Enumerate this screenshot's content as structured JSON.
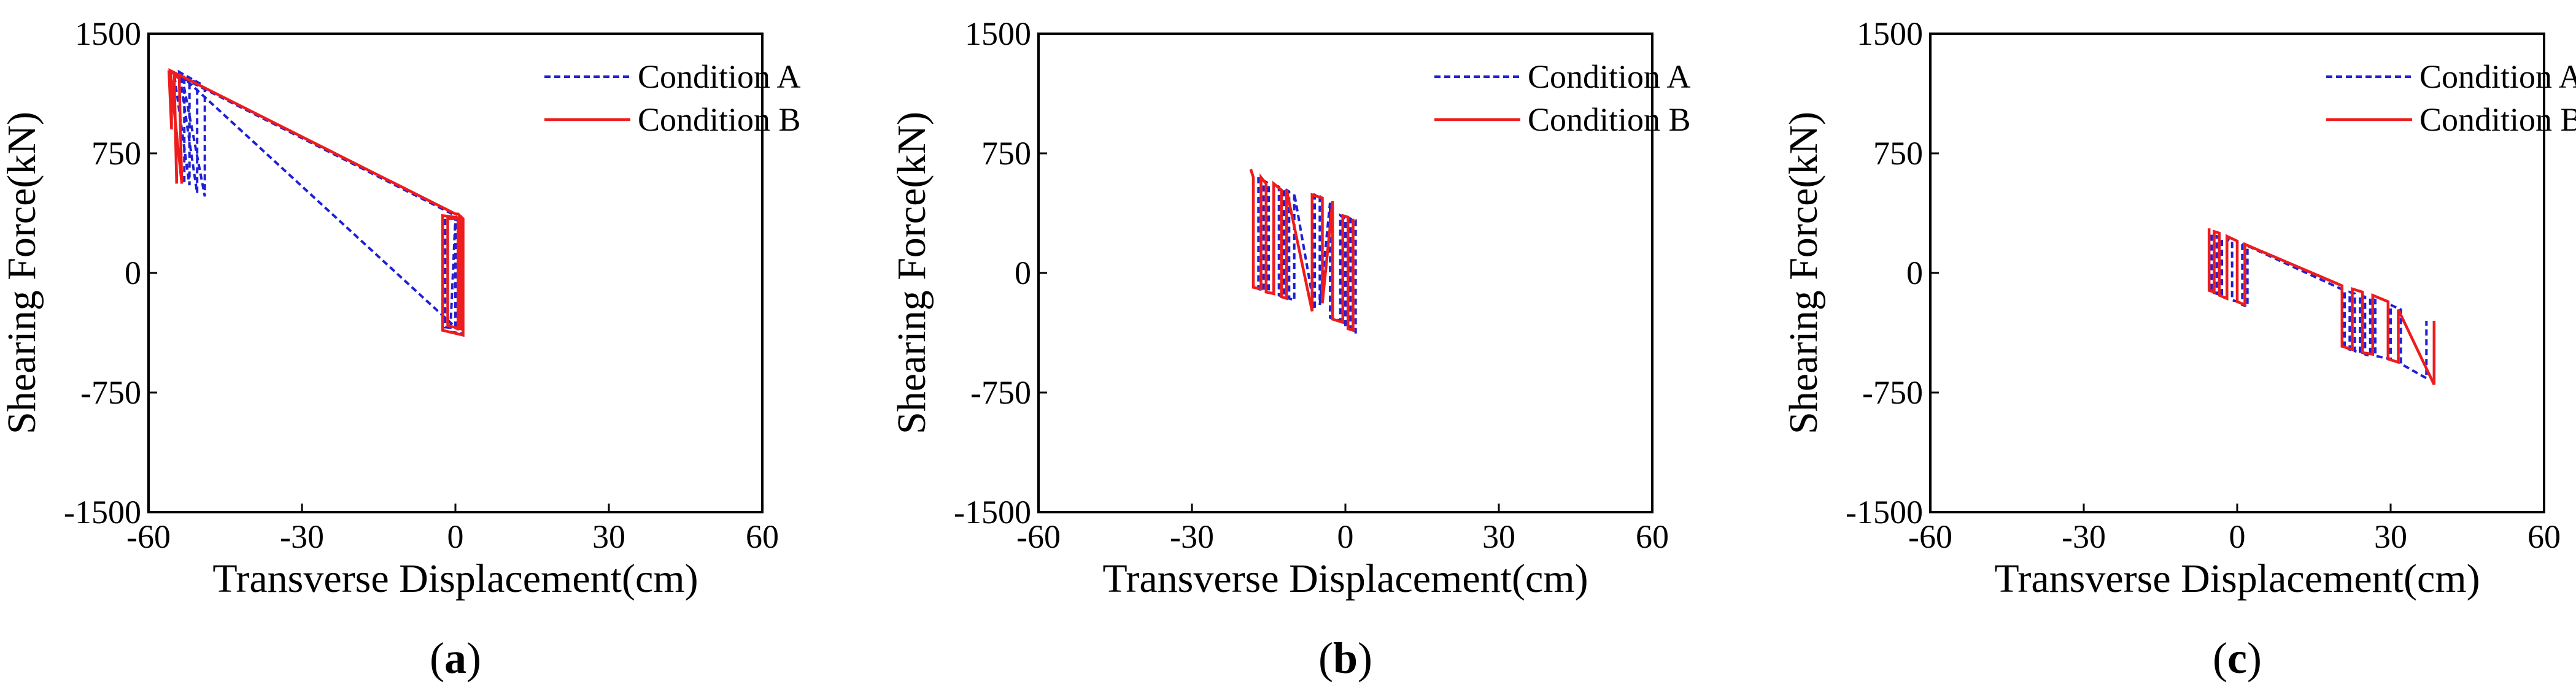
{
  "figure": {
    "legend": {
      "condition_a": "Condition A",
      "condition_b": "Condition B"
    },
    "colors": {
      "condition_a": "#1f1fd6",
      "condition_b": "#ee1c1c",
      "axis": "#000000"
    }
  },
  "chart_data": [
    {
      "type": "line",
      "panel_label": "(a)",
      "panel_letter": "a",
      "xlabel": "Transverse Displacement(cm)",
      "ylabel": "Shearing Force(kN)",
      "xlim": [
        -60,
        60
      ],
      "ylim": [
        -1500,
        1500
      ],
      "xticks": [
        -60,
        -30,
        0,
        30,
        60
      ],
      "yticks": [
        -1500,
        -750,
        0,
        750,
        1500
      ],
      "legend_position": "top-right",
      "series": [
        {
          "name": "Condition A",
          "line_style": "dashed",
          "x": [
            -55,
            -51,
            -50.5,
            -50.5,
            -54,
            -49.5,
            -49,
            -49,
            -53.5,
            -52,
            -52,
            -55,
            0,
            0.5,
            1,
            1,
            -2,
            -2,
            1.5,
            1.5,
            -1,
            0,
            0,
            -53,
            -53
          ],
          "y": [
            1250,
            1200,
            1150,
            500,
            1260,
            1180,
            1150,
            480,
            1240,
            1200,
            550,
            1250,
            360,
            320,
            330,
            -350,
            -340,
            350,
            340,
            -380,
            -370,
            350,
            -340,
            1220,
            560
          ]
        },
        {
          "name": "Condition B",
          "line_style": "solid",
          "x": [
            -56,
            -55.5,
            -55.5,
            -56,
            -55,
            -54.5,
            -54.5,
            -55,
            -54,
            -53.5,
            -53.5,
            -55.8,
            0,
            0.5,
            1.5,
            1.5,
            -2.5,
            -2.5,
            1,
            1,
            -1.5,
            -1.5,
            0.5,
            0.5
          ],
          "y": [
            1270,
            1200,
            900,
            1260,
            1250,
            600,
            560,
            1240,
            1220,
            560,
            560,
            1270,
            370,
            370,
            340,
            -390,
            -360,
            360,
            345,
            -350,
            -330,
            340,
            340,
            -360
          ]
        }
      ]
    },
    {
      "type": "line",
      "panel_label": "(b)",
      "panel_letter": "b",
      "xlabel": "Transverse Displacement(cm)",
      "ylabel": "Shearing Force(kN)",
      "xlim": [
        -60,
        60
      ],
      "ylim": [
        -1500,
        1500
      ],
      "xticks": [
        -60,
        -30,
        0,
        30,
        60
      ],
      "yticks": [
        -1500,
        -750,
        0,
        750,
        1500
      ],
      "legend_position": "top-right",
      "series": [
        {
          "name": "Condition A",
          "line_style": "dashed",
          "x": [
            -17,
            -17,
            -16,
            -16,
            -15,
            -15,
            -14,
            -14,
            -13,
            -13,
            -12,
            -12,
            -11,
            -11,
            -10,
            -10,
            -6,
            -6,
            -5,
            -5,
            -3,
            -3,
            -1,
            -1,
            0,
            0,
            1,
            1,
            2,
            2
          ],
          "y": [
            600,
            -100,
            -110,
            580,
            560,
            -120,
            -130,
            560,
            540,
            -140,
            -150,
            530,
            510,
            -160,
            -170,
            500,
            -230,
            490,
            480,
            -200,
            440,
            -280,
            -300,
            360,
            340,
            -340,
            -350,
            340,
            330,
            -380
          ]
        },
        {
          "name": "Condition B",
          "line_style": "solid",
          "x": [
            -18.5,
            -18,
            -18,
            -16.5,
            -16.5,
            -15.5,
            -15.5,
            -14,
            -14,
            -12.5,
            -12.5,
            -11.5,
            -11.5,
            -6.5,
            -6.5,
            -4.5,
            -4.5,
            -2.5,
            -2.5,
            -0.5,
            -0.5,
            0.5,
            0.5,
            1.5,
            1.5
          ],
          "y": [
            650,
            600,
            -90,
            -100,
            600,
            560,
            -120,
            -130,
            560,
            520,
            -150,
            -160,
            520,
            -240,
            490,
            470,
            -190,
            450,
            -290,
            -310,
            360,
            350,
            -350,
            -360,
            340
          ]
        }
      ]
    },
    {
      "type": "line",
      "panel_label": "(c)",
      "panel_letter": "c",
      "xlabel": "Transverse Displacement(cm)",
      "ylabel": "Shearing Force(kN)",
      "xlim": [
        -60,
        60
      ],
      "ylim": [
        -1500,
        1500
      ],
      "xticks": [
        -60,
        -30,
        0,
        30,
        60
      ],
      "yticks": [
        -1500,
        -750,
        0,
        750,
        1500
      ],
      "legend_position": "top-right",
      "series": [
        {
          "name": "Condition A",
          "line_style": "dashed",
          "x": [
            -5,
            -5,
            -4,
            -4,
            -3,
            -3,
            -2,
            -2,
            -1,
            -1,
            0,
            0,
            1,
            1,
            2,
            2,
            21,
            21,
            22,
            22,
            23,
            23,
            24,
            24,
            25,
            25,
            26,
            26,
            27,
            27,
            30,
            30,
            32,
            32,
            37,
            37
          ],
          "y": [
            240,
            -120,
            -130,
            230,
            220,
            -150,
            -160,
            210,
            200,
            -170,
            -180,
            190,
            180,
            -200,
            -210,
            170,
            -110,
            -470,
            -480,
            -120,
            -130,
            -490,
            -500,
            -140,
            -150,
            -510,
            -520,
            -160,
            -170,
            -520,
            -540,
            -200,
            -230,
            -570,
            -660,
            -300
          ]
        },
        {
          "name": "Condition B",
          "line_style": "solid",
          "x": [
            -5.5,
            -5.5,
            -4.5,
            -4.5,
            -3.5,
            -3.5,
            -2,
            -2,
            0,
            0,
            1.5,
            1.5,
            20.5,
            20.5,
            22.5,
            22.5,
            24.5,
            24.5,
            26.5,
            26.5,
            29.5,
            29.5,
            31.5,
            31.5,
            38.5,
            38.5
          ],
          "y": [
            280,
            -110,
            -120,
            260,
            250,
            -140,
            -160,
            230,
            200,
            -180,
            -200,
            180,
            -80,
            -460,
            -480,
            -100,
            -120,
            -500,
            -510,
            -140,
            -180,
            -540,
            -560,
            -230,
            -700,
            -300
          ]
        }
      ]
    }
  ]
}
